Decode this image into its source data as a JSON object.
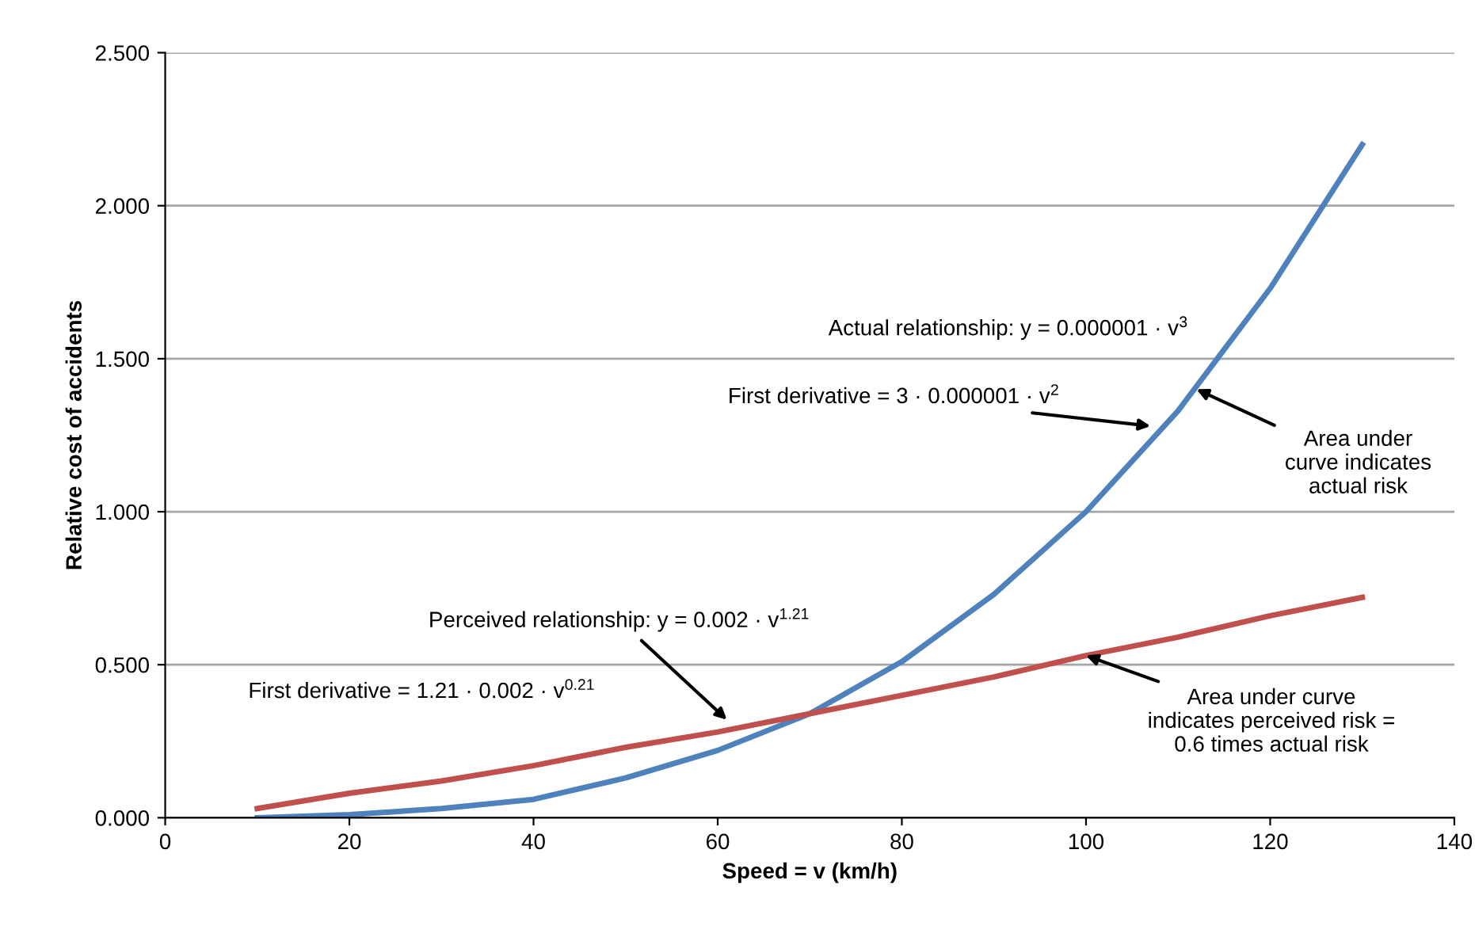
{
  "chart_data": {
    "type": "line",
    "xlabel": "Speed = v (km/h)",
    "ylabel": "Relative cost of accidents",
    "x": [
      10,
      20,
      30,
      40,
      50,
      60,
      70,
      80,
      90,
      100,
      110,
      120,
      130
    ],
    "series": [
      {
        "color": "#4f81bd",
        "values": [
          0.0,
          0.01,
          0.03,
          0.06,
          0.13,
          0.22,
          0.34,
          0.51,
          0.73,
          1.0,
          1.33,
          1.73,
          2.2
        ]
      },
      {
        "color": "#c0504d",
        "values": [
          0.03,
          0.08,
          0.12,
          0.17,
          0.23,
          0.28,
          0.34,
          0.4,
          0.46,
          0.53,
          0.59,
          0.66,
          0.72
        ]
      }
    ],
    "xlim": [
      0,
      140
    ],
    "xticks": [
      0,
      20,
      40,
      60,
      80,
      100,
      120,
      140
    ],
    "ylim": [
      0,
      2.5
    ],
    "yticks": [
      {
        "value": 0,
        "label": "0.000"
      },
      {
        "value": 0.5,
        "label": "0.500"
      },
      {
        "value": 1,
        "label": "1.000"
      },
      {
        "value": 1.5,
        "label": "1.500"
      },
      {
        "value": 2,
        "label": "2.000"
      },
      {
        "value": 2.5,
        "label": "2.500"
      }
    ],
    "grid": "y",
    "marker": "none",
    "line_style": "solid",
    "legend": false,
    "annotations": [
      "Actual relationship: y = 0.000001 · v$^{3}$",
      {
        "text": "First derivative = 3 · 0.000001 · v$^{2}$",
        "x": 107,
        "y": 1.28
      },
      {
        "text": "Area under\ncurve indicates\nactual risk",
        "x": 112,
        "y": 1.4
      },
      {
        "text": "Perceived relationship: y = 0.002 · v$^{1.21}$",
        "x": 61,
        "y": 0.32
      },
      "First derivative = 1.21 · 0.002 · v$^{0.21}$",
      {
        "text": "Area under curve\nindicates perceived risk =\n0.6 times actual risk",
        "x": 100,
        "y": 0.53
      }
    ]
  }
}
